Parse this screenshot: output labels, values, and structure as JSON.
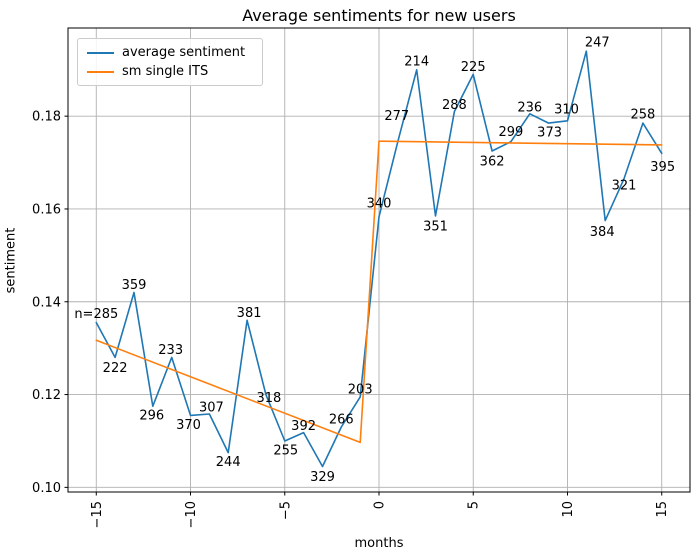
{
  "chart_data": {
    "type": "line",
    "title": "Average sentiments for new users",
    "xlabel": "months",
    "ylabel": "sentiment",
    "xlim": [
      -16.5,
      16.5
    ],
    "ylim": [
      0.099,
      0.199
    ],
    "grid": true,
    "grid_color": "#b0b0b0",
    "legend_position": "upper left",
    "xticks": [
      {
        "value": -15,
        "label": "−15"
      },
      {
        "value": -10,
        "label": "−10"
      },
      {
        "value": -5,
        "label": "−5"
      },
      {
        "value": 0,
        "label": "0"
      },
      {
        "value": 5,
        "label": "5"
      },
      {
        "value": 10,
        "label": "10"
      },
      {
        "value": 15,
        "label": "15"
      }
    ],
    "yticks": [
      {
        "value": 0.1,
        "label": "0.10"
      },
      {
        "value": 0.12,
        "label": "0.12"
      },
      {
        "value": 0.14,
        "label": "0.14"
      },
      {
        "value": 0.16,
        "label": "0.16"
      },
      {
        "value": 0.18,
        "label": "0.18"
      }
    ],
    "series": [
      {
        "name": "average sentiment",
        "color": "#1f77b4",
        "x": [
          -15,
          -14,
          -13,
          -12,
          -11,
          -10,
          -9,
          -8,
          -7,
          -6,
          -5,
          -4,
          -3,
          -2,
          -1,
          0,
          1,
          2,
          3,
          4,
          5,
          6,
          7,
          8,
          9,
          10,
          11,
          12,
          13,
          14,
          15
        ],
        "y": [
          0.1355,
          0.128,
          0.142,
          0.1175,
          0.128,
          0.1155,
          0.1158,
          0.1075,
          0.136,
          0.12,
          0.11,
          0.1118,
          0.1045,
          0.113,
          0.1195,
          0.1583,
          0.1745,
          0.19,
          0.1585,
          0.181,
          0.189,
          0.1725,
          0.1745,
          0.1805,
          0.1785,
          0.179,
          0.194,
          0.1575,
          0.1665,
          0.1785,
          0.172
        ],
        "point_labels": [
          {
            "text": "n=285",
            "dx": 0,
            "dy": -9
          },
          {
            "text": "222",
            "dx": 0,
            "dy": 10
          },
          {
            "text": "359",
            "dx": 0,
            "dy": -8
          },
          {
            "text": "296",
            "dx": -1,
            "dy": 9
          },
          {
            "text": "233",
            "dx": -1,
            "dy": -8
          },
          {
            "text": "370",
            "dx": -2,
            "dy": 9
          },
          {
            "text": "307",
            "dx": 2,
            "dy": -7
          },
          {
            "text": "244",
            "dx": 0,
            "dy": 9
          },
          {
            "text": "381",
            "dx": 2,
            "dy": -8
          },
          {
            "text": "318",
            "dx": 3,
            "dy": 3
          },
          {
            "text": "255",
            "dx": 1,
            "dy": 9
          },
          {
            "text": "392",
            "dx": 0,
            "dy": -7
          },
          {
            "text": "329",
            "dx": 0,
            "dy": 10
          },
          {
            "text": "266",
            "dx": 0,
            "dy": -8
          },
          {
            "text": "203",
            "dx": 0,
            "dy": -8
          },
          {
            "text": "340",
            "dx": 0,
            "dy": -14
          },
          {
            "text": "277",
            "dx": -1,
            "dy": -26
          },
          {
            "text": "214",
            "dx": 0,
            "dy": -9
          },
          {
            "text": "351",
            "dx": 0,
            "dy": 10
          },
          {
            "text": "288",
            "dx": 0,
            "dy": -7
          },
          {
            "text": "225",
            "dx": 0,
            "dy": -8
          },
          {
            "text": "362",
            "dx": 0,
            "dy": 10
          },
          {
            "text": "299",
            "dx": 0,
            "dy": -10
          },
          {
            "text": "236",
            "dx": 0,
            "dy": -7
          },
          {
            "text": "373",
            "dx": 1,
            "dy": 9
          },
          {
            "text": "310",
            "dx": -1,
            "dy": -12
          },
          {
            "text": "247",
            "dx": 11,
            "dy": -9
          },
          {
            "text": "384",
            "dx": -3,
            "dy": 11
          },
          {
            "text": "321",
            "dx": 0,
            "dy": 6
          },
          {
            "text": "258",
            "dx": 0,
            "dy": -9
          },
          {
            "text": "395",
            "dx": 1,
            "dy": 13
          }
        ]
      },
      {
        "name": "sm single ITS",
        "color": "#ff7f0e",
        "x": [
          -15,
          -1,
          0,
          15
        ],
        "y": [
          0.1317,
          0.1097,
          0.1746,
          0.1738
        ],
        "point_labels": []
      }
    ]
  }
}
